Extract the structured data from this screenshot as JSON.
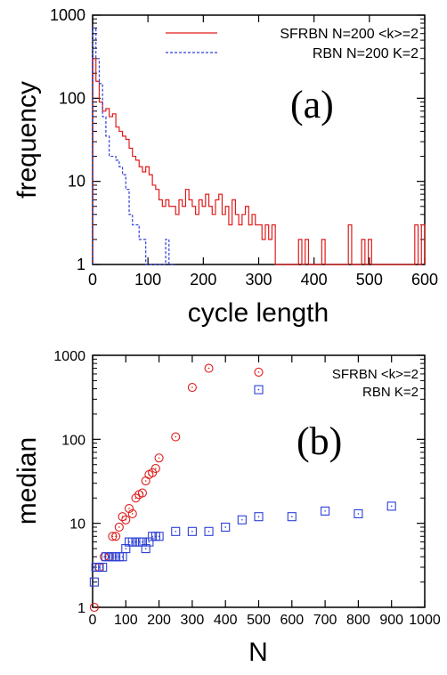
{
  "chart_data": [
    {
      "type": "line",
      "panel_label": "(a)",
      "xlabel": "cycle length",
      "ylabel": "frequency",
      "xlim": [
        0,
        600
      ],
      "ylim": [
        1,
        1000
      ],
      "yscale": "log",
      "xticks": [
        "0",
        "100",
        "200",
        "300",
        "400",
        "500",
        "600"
      ],
      "yticks": [
        "1",
        "10",
        "100",
        "1000"
      ],
      "grid": false,
      "legend": "top-right",
      "series": [
        {
          "name": "SFRBN N=200 <k>=2",
          "style": "solid",
          "color": "#e01b1b",
          "x": [
            0,
            6,
            12,
            18,
            24,
            30,
            36,
            42,
            48,
            54,
            60,
            66,
            72,
            78,
            84,
            90,
            96,
            102,
            108,
            114,
            120,
            126,
            132,
            138,
            144,
            150,
            156,
            162,
            168,
            174,
            180,
            186,
            192,
            198,
            204,
            210,
            216,
            222,
            228,
            234,
            240,
            246,
            252,
            258,
            264,
            270,
            276,
            282,
            288,
            294,
            300,
            306,
            312,
            318,
            324,
            330,
            336,
            342,
            348,
            354,
            360,
            366,
            372,
            378,
            384,
            390,
            396,
            402,
            408,
            414,
            420,
            426,
            432,
            438,
            444,
            450,
            456,
            462,
            468,
            474,
            480,
            486,
            492,
            498,
            504,
            510,
            516,
            522,
            528,
            534,
            540,
            546,
            552,
            558,
            564,
            570,
            576,
            582,
            588,
            594,
            600
          ],
          "values": [
            300,
            160,
            90,
            70,
            75,
            60,
            65,
            45,
            40,
            35,
            32,
            25,
            20,
            18,
            15,
            13,
            15,
            12,
            9,
            8,
            6,
            5,
            6,
            5,
            5,
            4,
            6,
            5,
            8,
            6,
            5,
            4,
            6,
            5,
            7,
            5,
            4,
            6,
            7,
            4,
            5,
            3,
            6,
            4,
            3,
            4,
            5,
            3,
            4,
            3,
            3,
            2,
            3,
            2,
            3,
            1,
            1,
            1,
            1,
            1,
            1,
            1,
            2,
            1,
            2,
            1,
            1,
            1,
            1,
            2,
            1,
            1,
            1,
            1,
            1,
            1,
            1,
            3,
            1,
            1,
            1,
            2,
            1,
            2,
            1,
            1,
            1,
            1,
            1,
            1,
            1,
            1,
            1,
            1,
            1,
            1,
            1,
            3,
            1,
            3,
            1
          ]
        },
        {
          "name": "RBN N=200 K=2",
          "style": "dashed",
          "color": "#2c3fd6",
          "x": [
            0,
            6,
            12,
            18,
            24,
            30,
            36,
            42,
            48,
            54,
            60,
            66,
            72,
            78,
            84,
            90,
            96,
            102,
            108,
            114,
            120,
            126,
            132,
            138,
            144,
            150
          ],
          "values": [
            700,
            300,
            150,
            60,
            35,
            20,
            20,
            18,
            15,
            12,
            8,
            4,
            3,
            3,
            2,
            2,
            1,
            1,
            1,
            1,
            1,
            1,
            2,
            1,
            1,
            1
          ]
        }
      ]
    },
    {
      "type": "scatter",
      "panel_label": "(b)",
      "xlabel": "N",
      "ylabel": "median",
      "xlim": [
        0,
        1000
      ],
      "ylim": [
        1,
        1000
      ],
      "yscale": "log",
      "xticks": [
        "0",
        "100",
        "200",
        "300",
        "400",
        "500",
        "600",
        "700",
        "800",
        "900",
        "1000"
      ],
      "yticks": [
        "1",
        "10",
        "100",
        "1000"
      ],
      "grid": false,
      "legend": "top-right",
      "series": [
        {
          "name": "SFRBN <k>=2",
          "marker": "circle",
          "color": "#e01b1b",
          "x": [
            5,
            20,
            35,
            50,
            60,
            70,
            80,
            90,
            100,
            110,
            120,
            130,
            140,
            150,
            160,
            170,
            180,
            190,
            200,
            250,
            300,
            350,
            500
          ],
          "values": [
            1,
            3,
            4,
            4,
            7,
            7,
            9,
            12,
            11,
            15,
            13,
            20,
            22,
            23,
            32,
            38,
            40,
            45,
            60,
            107,
            415,
            700,
            630
          ]
        },
        {
          "name": "RBN K=2",
          "marker": "square",
          "color": "#2c3fd6",
          "x": [
            5,
            10,
            20,
            30,
            40,
            50,
            60,
            70,
            80,
            90,
            100,
            110,
            120,
            130,
            140,
            150,
            160,
            170,
            180,
            190,
            200,
            250,
            300,
            350,
            400,
            450,
            500,
            600,
            700,
            800,
            900,
            500
          ],
          "values": [
            2,
            3,
            3,
            3,
            4,
            4,
            4,
            4,
            4,
            4,
            5,
            6,
            6,
            6,
            6,
            6,
            5,
            6,
            7,
            7,
            7,
            8,
            8,
            8,
            9,
            11,
            12,
            12,
            14,
            13,
            16,
            390
          ]
        }
      ]
    }
  ]
}
